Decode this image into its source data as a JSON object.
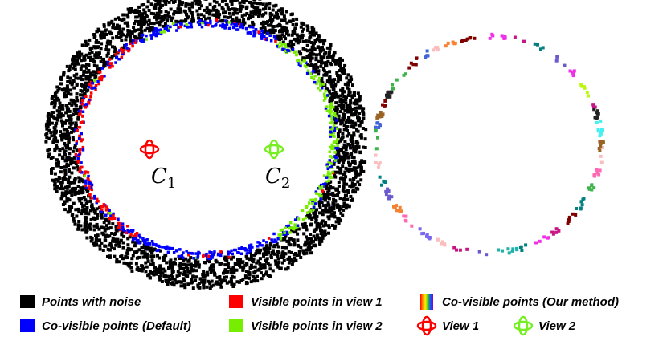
{
  "figure": {
    "labels": [
      {
        "text": "C",
        "sub": "1"
      },
      {
        "text": "C",
        "sub": "2"
      }
    ],
    "legend": [
      {
        "label": "Points with noise"
      },
      {
        "label": "Visible points in view 1"
      },
      {
        "label": "Co-visible points (Our method)"
      },
      {
        "label": "Co-visible points (Default)"
      },
      {
        "label": "Visible points in view 2"
      },
      {
        "label": "View 1"
      },
      {
        "label": "View 2"
      }
    ]
  }
}
